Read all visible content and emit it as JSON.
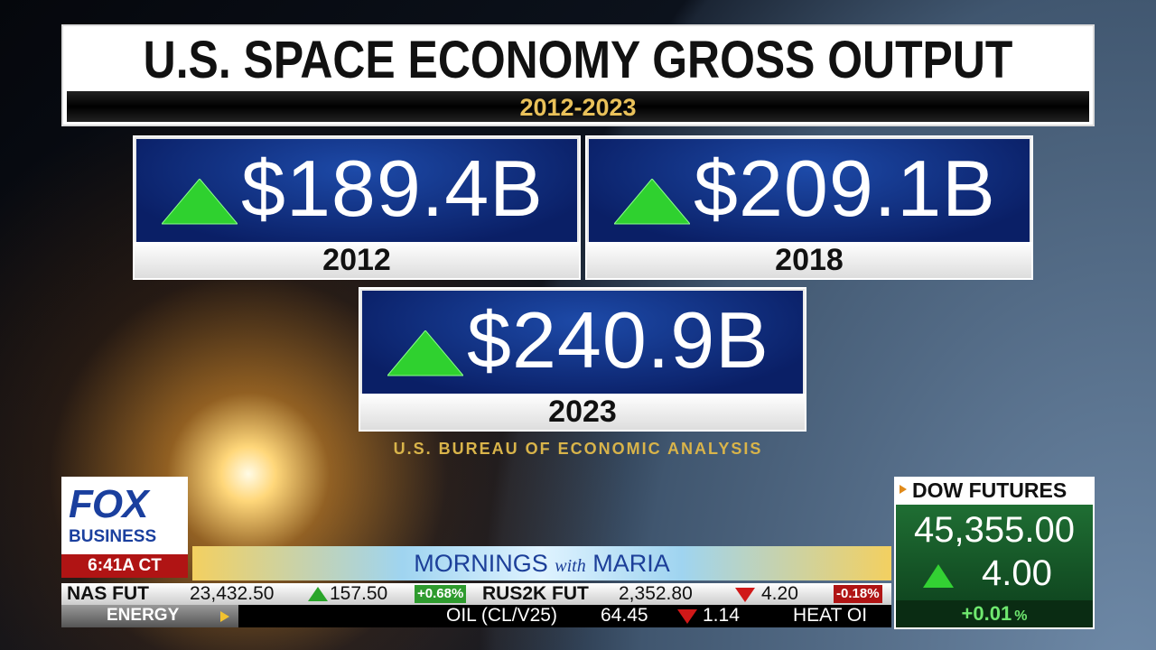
{
  "graphic": {
    "title": "U.S. SPACE ECONOMY GROSS OUTPUT",
    "subtitle": "2012-2023",
    "cards": [
      {
        "value": "$189.4B",
        "year": "2012"
      },
      {
        "value": "$209.1B",
        "year": "2018"
      },
      {
        "value": "$240.9B",
        "year": "2023"
      }
    ],
    "source": "U.S. BUREAU OF ECONOMIC ANALYSIS"
  },
  "logo": {
    "top": "FOX",
    "bottom": "BUSINESS",
    "time": "6:41A CT"
  },
  "show": {
    "first": "MORNINGS",
    "middle": "with",
    "last": "MARIA"
  },
  "dow": {
    "label": "DOW FUTURES",
    "price": "45,355.00",
    "change": "4.00",
    "percent": "+0.01",
    "percent_sign": "%"
  },
  "ticker": {
    "row1": [
      {
        "name": "NAS FUT",
        "price": "23,432.50",
        "change": "157.50",
        "percent": "+0.68%"
      },
      {
        "name": "RUS2K FUT",
        "price": "2,352.80",
        "change": "4.20",
        "percent": "-0.18%"
      }
    ],
    "row2": {
      "section": "ENERGY",
      "name": "OIL (CL/V25)",
      "price": "64.45",
      "change": "1.14",
      "next": "HEAT OI"
    }
  }
}
